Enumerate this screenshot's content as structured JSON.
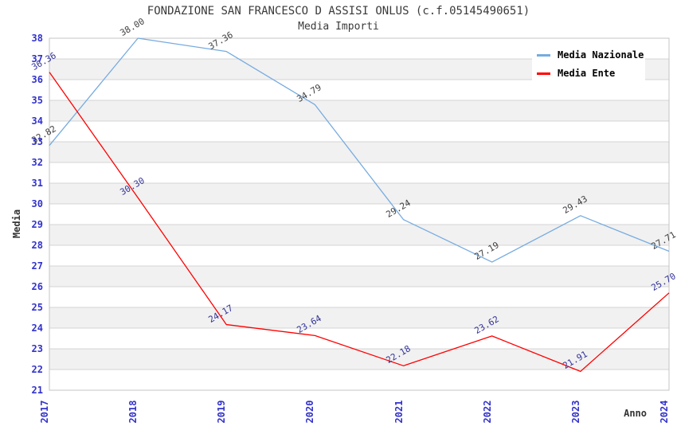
{
  "chart_data": {
    "type": "line",
    "title": "FONDAZIONE SAN FRANCESCO D ASSISI ONLUS (c.f.05145490651)",
    "subtitle": "Media Importi",
    "xlabel": "Anno",
    "ylabel": "Media",
    "x": [
      "2017",
      "2018",
      "2019",
      "2020",
      "2021",
      "2022",
      "2023",
      "2024"
    ],
    "ylim": [
      21,
      38
    ],
    "ytick_step": 1,
    "grid": true,
    "legend_position": "top-right",
    "series": [
      {
        "name": "Media Nazionale",
        "color": "#76abe0",
        "label_color": "#404040",
        "values": [
          32.82,
          38.0,
          37.36,
          34.79,
          29.24,
          27.19,
          29.43,
          27.71
        ]
      },
      {
        "name": "Media Ente",
        "color": "#ff0000",
        "label_color": "#333399",
        "values": [
          36.36,
          30.3,
          24.17,
          23.64,
          22.18,
          23.62,
          21.91,
          25.7
        ]
      }
    ]
  },
  "legend": {
    "items": [
      {
        "label": "Media Nazionale",
        "color": "#76abe0"
      },
      {
        "label": "Media Ente",
        "color": "#ff0000"
      }
    ]
  },
  "colors": {
    "axis_text": "#3232cd",
    "grid_line": "#d4d4d4",
    "band_fill": "#f1f1f1",
    "plot_border": "#c4c4c4",
    "title_text": "#3a3a3a"
  }
}
